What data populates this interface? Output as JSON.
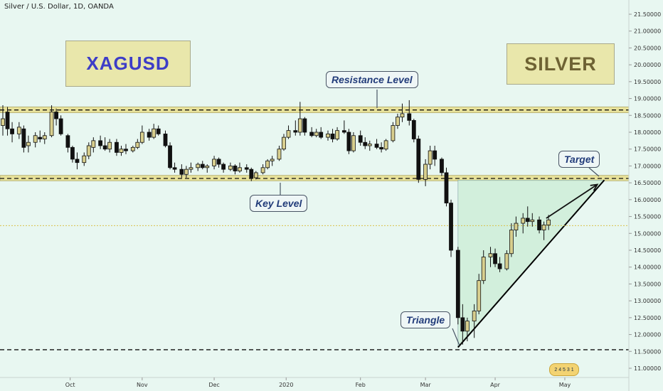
{
  "header": {
    "symbol_title": "Silver / U.S. Dollar, 1D, OANDA"
  },
  "labels": {
    "xagusd": "XAGUSD",
    "silver": "SILVER",
    "resistance": "Resistance Level",
    "key": "Key Level",
    "triangle": "Triangle",
    "target": "Target"
  },
  "logo_text": "2 4 5 3 1",
  "colors": {
    "background": "#e8f7f1",
    "zone_fill": "#e8e29a",
    "up_candle": "#d8cf8e",
    "down_candle": "#111111",
    "triangle_fill": "#cfeed9"
  },
  "chart_data": {
    "type": "candlestick",
    "title": "Silver / U.S. Dollar, 1D, OANDA",
    "y_axis": {
      "ticks": [
        "21.50000",
        "21.00000",
        "20.50000",
        "20.00000",
        "19.50000",
        "19.00000",
        "18.50000",
        "18.00000",
        "17.50000",
        "17.00000",
        "16.50000",
        "16.00000",
        "15.50000",
        "15.00000",
        "14.50000",
        "14.00000",
        "13.50000",
        "13.00000",
        "12.50000",
        "12.00000",
        "11.50000",
        "11.00000"
      ],
      "range": [
        10.85,
        21.75
      ]
    },
    "x_axis": {
      "ticks": [
        "Oct",
        "Nov",
        "Dec",
        "2020",
        "Feb",
        "Mar",
        "Apr",
        "May"
      ],
      "range": [
        "2019-09-02",
        "2020-05-20"
      ],
      "tick_dates": [
        "2019-10-01",
        "2019-11-01",
        "2019-12-02",
        "2020-01-02",
        "2020-02-03",
        "2020-03-02",
        "2020-04-01",
        "2020-05-01"
      ]
    },
    "zones": [
      {
        "name": "Resistance Level",
        "low": 18.58,
        "high": 18.75,
        "line": 18.66
      },
      {
        "name": "Key Level",
        "low": 16.56,
        "high": 16.72,
        "line": 16.63
      }
    ],
    "lines": [
      {
        "name": "support",
        "y": 11.55
      },
      {
        "name": "current",
        "y": 15.23
      }
    ],
    "triangle": {
      "points": [
        [
          "2020-03-16",
          11.62
        ],
        [
          "2020-03-16",
          16.58
        ],
        [
          "2020-05-18",
          16.58
        ]
      ]
    },
    "target_arrow": {
      "from": [
        "2020-04-23",
        15.45
      ],
      "to": [
        "2020-05-15",
        16.45
      ]
    },
    "ohlc": [
      {
        "d": "2019-09-02",
        "o": 18.2,
        "h": 18.8,
        "l": 17.9,
        "c": 18.4
      },
      {
        "d": "2019-09-04",
        "o": 18.6,
        "h": 18.75,
        "l": 17.9,
        "c": 18.1
      },
      {
        "d": "2019-09-06",
        "o": 18.1,
        "h": 18.3,
        "l": 17.7,
        "c": 17.95
      },
      {
        "d": "2019-09-09",
        "o": 17.95,
        "h": 18.3,
        "l": 17.8,
        "c": 18.15
      },
      {
        "d": "2019-09-11",
        "o": 18.1,
        "h": 18.2,
        "l": 17.4,
        "c": 17.55
      },
      {
        "d": "2019-09-13",
        "o": 17.6,
        "h": 17.9,
        "l": 17.4,
        "c": 17.7
      },
      {
        "d": "2019-09-16",
        "o": 17.7,
        "h": 18.0,
        "l": 17.55,
        "c": 17.9
      },
      {
        "d": "2019-09-18",
        "o": 17.85,
        "h": 18.05,
        "l": 17.7,
        "c": 17.8
      },
      {
        "d": "2019-09-20",
        "o": 17.8,
        "h": 18.0,
        "l": 17.65,
        "c": 17.9
      },
      {
        "d": "2019-09-23",
        "o": 17.9,
        "h": 18.8,
        "l": 17.85,
        "c": 18.6
      },
      {
        "d": "2019-09-25",
        "o": 18.6,
        "h": 18.7,
        "l": 18.2,
        "c": 18.4
      },
      {
        "d": "2019-09-27",
        "o": 18.4,
        "h": 18.5,
        "l": 17.9,
        "c": 17.95
      },
      {
        "d": "2019-09-30",
        "o": 17.9,
        "h": 17.95,
        "l": 17.4,
        "c": 17.55
      },
      {
        "d": "2019-10-02",
        "o": 17.55,
        "h": 17.6,
        "l": 17.1,
        "c": 17.2
      },
      {
        "d": "2019-10-04",
        "o": 17.2,
        "h": 17.4,
        "l": 16.9,
        "c": 17.1
      },
      {
        "d": "2019-10-07",
        "o": 17.1,
        "h": 17.4,
        "l": 17.0,
        "c": 17.3
      },
      {
        "d": "2019-10-09",
        "o": 17.3,
        "h": 17.7,
        "l": 17.2,
        "c": 17.6
      },
      {
        "d": "2019-10-11",
        "o": 17.55,
        "h": 17.85,
        "l": 17.4,
        "c": 17.75
      },
      {
        "d": "2019-10-14",
        "o": 17.75,
        "h": 17.9,
        "l": 17.5,
        "c": 17.6
      },
      {
        "d": "2019-10-16",
        "o": 17.6,
        "h": 17.85,
        "l": 17.45,
        "c": 17.5
      },
      {
        "d": "2019-10-18",
        "o": 17.5,
        "h": 17.8,
        "l": 17.4,
        "c": 17.7
      },
      {
        "d": "2019-10-21",
        "o": 17.7,
        "h": 17.8,
        "l": 17.3,
        "c": 17.4
      },
      {
        "d": "2019-10-23",
        "o": 17.4,
        "h": 17.6,
        "l": 17.3,
        "c": 17.5
      },
      {
        "d": "2019-10-25",
        "o": 17.5,
        "h": 17.65,
        "l": 17.35,
        "c": 17.45
      },
      {
        "d": "2019-10-28",
        "o": 17.45,
        "h": 17.6,
        "l": 17.4,
        "c": 17.55
      },
      {
        "d": "2019-10-30",
        "o": 17.55,
        "h": 17.8,
        "l": 17.5,
        "c": 17.7
      },
      {
        "d": "2019-11-01",
        "o": 17.7,
        "h": 18.2,
        "l": 17.65,
        "c": 18.0
      },
      {
        "d": "2019-11-04",
        "o": 18.0,
        "h": 18.1,
        "l": 17.75,
        "c": 17.85
      },
      {
        "d": "2019-11-06",
        "o": 17.85,
        "h": 18.25,
        "l": 17.8,
        "c": 18.1
      },
      {
        "d": "2019-11-08",
        "o": 18.1,
        "h": 18.2,
        "l": 17.9,
        "c": 17.95
      },
      {
        "d": "2019-11-11",
        "o": 17.95,
        "h": 18.05,
        "l": 17.55,
        "c": 17.6
      },
      {
        "d": "2019-11-13",
        "o": 17.6,
        "h": 17.7,
        "l": 16.9,
        "c": 16.95
      },
      {
        "d": "2019-11-15",
        "o": 16.95,
        "h": 17.1,
        "l": 16.8,
        "c": 16.9
      },
      {
        "d": "2019-11-18",
        "o": 16.9,
        "h": 17.05,
        "l": 16.65,
        "c": 16.75
      },
      {
        "d": "2019-11-20",
        "o": 16.75,
        "h": 17.0,
        "l": 16.65,
        "c": 16.9
      },
      {
        "d": "2019-11-22",
        "o": 16.9,
        "h": 17.1,
        "l": 16.8,
        "c": 16.95
      },
      {
        "d": "2019-11-25",
        "o": 16.95,
        "h": 17.1,
        "l": 16.85,
        "c": 17.05
      },
      {
        "d": "2019-11-27",
        "o": 17.05,
        "h": 17.15,
        "l": 16.9,
        "c": 16.95
      },
      {
        "d": "2019-11-29",
        "o": 16.95,
        "h": 17.05,
        "l": 16.8,
        "c": 17.0
      },
      {
        "d": "2019-12-02",
        "o": 17.0,
        "h": 17.3,
        "l": 16.9,
        "c": 17.2
      },
      {
        "d": "2019-12-04",
        "o": 17.2,
        "h": 17.25,
        "l": 16.95,
        "c": 17.05
      },
      {
        "d": "2019-12-06",
        "o": 17.05,
        "h": 17.1,
        "l": 16.8,
        "c": 16.9
      },
      {
        "d": "2019-12-09",
        "o": 16.9,
        "h": 17.1,
        "l": 16.85,
        "c": 17.0
      },
      {
        "d": "2019-12-11",
        "o": 17.0,
        "h": 17.05,
        "l": 16.75,
        "c": 16.85
      },
      {
        "d": "2019-12-13",
        "o": 16.85,
        "h": 17.1,
        "l": 16.8,
        "c": 16.95
      },
      {
        "d": "2019-12-16",
        "o": 16.95,
        "h": 17.05,
        "l": 16.8,
        "c": 16.9
      },
      {
        "d": "2019-12-18",
        "o": 16.9,
        "h": 16.95,
        "l": 16.55,
        "c": 16.65
      },
      {
        "d": "2019-12-20",
        "o": 16.65,
        "h": 16.85,
        "l": 16.6,
        "c": 16.8
      },
      {
        "d": "2019-12-23",
        "o": 16.8,
        "h": 17.05,
        "l": 16.75,
        "c": 16.95
      },
      {
        "d": "2019-12-25",
        "o": 16.95,
        "h": 17.2,
        "l": 16.9,
        "c": 17.15
      },
      {
        "d": "2019-12-27",
        "o": 17.15,
        "h": 17.3,
        "l": 17.0,
        "c": 17.2
      },
      {
        "d": "2019-12-30",
        "o": 17.2,
        "h": 17.6,
        "l": 17.15,
        "c": 17.5
      },
      {
        "d": "2020-01-01",
        "o": 17.5,
        "h": 17.95,
        "l": 17.45,
        "c": 17.85
      },
      {
        "d": "2020-01-03",
        "o": 17.85,
        "h": 18.2,
        "l": 17.8,
        "c": 18.05
      },
      {
        "d": "2020-01-06",
        "o": 18.05,
        "h": 18.35,
        "l": 17.9,
        "c": 18.0
      },
      {
        "d": "2020-01-08",
        "o": 18.0,
        "h": 18.9,
        "l": 17.9,
        "c": 18.4
      },
      {
        "d": "2020-01-10",
        "o": 18.4,
        "h": 18.45,
        "l": 17.9,
        "c": 18.0
      },
      {
        "d": "2020-01-13",
        "o": 18.0,
        "h": 18.15,
        "l": 17.85,
        "c": 17.9
      },
      {
        "d": "2020-01-15",
        "o": 17.9,
        "h": 18.1,
        "l": 17.85,
        "c": 18.0
      },
      {
        "d": "2020-01-17",
        "o": 18.0,
        "h": 18.15,
        "l": 17.8,
        "c": 17.85
      },
      {
        "d": "2020-01-20",
        "o": 17.85,
        "h": 18.05,
        "l": 17.75,
        "c": 17.95
      },
      {
        "d": "2020-01-22",
        "o": 17.95,
        "h": 18.1,
        "l": 17.7,
        "c": 17.8
      },
      {
        "d": "2020-01-24",
        "o": 17.8,
        "h": 18.15,
        "l": 17.75,
        "c": 18.05
      },
      {
        "d": "2020-01-27",
        "o": 18.05,
        "h": 18.35,
        "l": 17.95,
        "c": 18.0
      },
      {
        "d": "2020-01-29",
        "o": 18.0,
        "h": 18.1,
        "l": 17.35,
        "c": 17.45
      },
      {
        "d": "2020-01-31",
        "o": 17.45,
        "h": 18.0,
        "l": 17.4,
        "c": 17.9
      },
      {
        "d": "2020-02-03",
        "o": 17.9,
        "h": 18.05,
        "l": 17.6,
        "c": 17.7
      },
      {
        "d": "2020-02-05",
        "o": 17.7,
        "h": 17.85,
        "l": 17.5,
        "c": 17.6
      },
      {
        "d": "2020-02-07",
        "o": 17.6,
        "h": 17.75,
        "l": 17.45,
        "c": 17.65
      },
      {
        "d": "2020-02-10",
        "o": 17.65,
        "h": 17.8,
        "l": 17.5,
        "c": 17.55
      },
      {
        "d": "2020-02-12",
        "o": 17.55,
        "h": 17.7,
        "l": 17.4,
        "c": 17.5
      },
      {
        "d": "2020-02-14",
        "o": 17.5,
        "h": 17.8,
        "l": 17.45,
        "c": 17.75
      },
      {
        "d": "2020-02-17",
        "o": 17.75,
        "h": 18.3,
        "l": 17.7,
        "c": 18.2
      },
      {
        "d": "2020-02-19",
        "o": 18.2,
        "h": 18.55,
        "l": 18.1,
        "c": 18.45
      },
      {
        "d": "2020-02-21",
        "o": 18.45,
        "h": 18.85,
        "l": 18.3,
        "c": 18.55
      },
      {
        "d": "2020-02-24",
        "o": 18.55,
        "h": 18.95,
        "l": 18.2,
        "c": 18.35
      },
      {
        "d": "2020-02-26",
        "o": 18.35,
        "h": 18.4,
        "l": 17.7,
        "c": 17.8
      },
      {
        "d": "2020-02-28",
        "o": 17.8,
        "h": 17.9,
        "l": 16.5,
        "c": 16.6
      },
      {
        "d": "2020-03-02",
        "o": 16.6,
        "h": 17.2,
        "l": 16.4,
        "c": 17.05
      },
      {
        "d": "2020-03-04",
        "o": 17.05,
        "h": 17.6,
        "l": 16.9,
        "c": 17.45
      },
      {
        "d": "2020-03-06",
        "o": 17.45,
        "h": 17.6,
        "l": 17.0,
        "c": 17.2
      },
      {
        "d": "2020-03-09",
        "o": 17.2,
        "h": 17.25,
        "l": 16.7,
        "c": 16.8
      },
      {
        "d": "2020-03-11",
        "o": 16.8,
        "h": 16.95,
        "l": 15.8,
        "c": 15.9
      },
      {
        "d": "2020-03-13",
        "o": 15.9,
        "h": 16.0,
        "l": 14.3,
        "c": 14.5
      },
      {
        "d": "2020-03-16",
        "o": 14.5,
        "h": 14.6,
        "l": 12.3,
        "c": 12.5
      },
      {
        "d": "2020-03-18",
        "o": 12.5,
        "h": 12.9,
        "l": 11.7,
        "c": 12.1
      },
      {
        "d": "2020-03-20",
        "o": 12.1,
        "h": 12.5,
        "l": 11.8,
        "c": 12.4
      },
      {
        "d": "2020-03-23",
        "o": 12.4,
        "h": 12.9,
        "l": 11.9,
        "c": 12.7
      },
      {
        "d": "2020-03-25",
        "o": 12.7,
        "h": 13.8,
        "l": 12.6,
        "c": 13.6
      },
      {
        "d": "2020-03-27",
        "o": 13.6,
        "h": 14.5,
        "l": 13.5,
        "c": 14.3
      },
      {
        "d": "2020-03-30",
        "o": 14.3,
        "h": 14.6,
        "l": 14.0,
        "c": 14.4
      },
      {
        "d": "2020-04-01",
        "o": 14.4,
        "h": 14.55,
        "l": 14.0,
        "c": 14.1
      },
      {
        "d": "2020-04-03",
        "o": 14.1,
        "h": 14.3,
        "l": 13.85,
        "c": 13.95
      },
      {
        "d": "2020-04-06",
        "o": 13.95,
        "h": 14.5,
        "l": 13.9,
        "c": 14.4
      },
      {
        "d": "2020-04-08",
        "o": 14.4,
        "h": 15.3,
        "l": 14.3,
        "c": 15.1
      },
      {
        "d": "2020-04-10",
        "o": 15.1,
        "h": 15.5,
        "l": 14.9,
        "c": 15.3
      },
      {
        "d": "2020-04-13",
        "o": 15.3,
        "h": 15.6,
        "l": 15.0,
        "c": 15.45
      },
      {
        "d": "2020-04-15",
        "o": 15.45,
        "h": 15.8,
        "l": 15.2,
        "c": 15.35
      },
      {
        "d": "2020-04-17",
        "o": 15.35,
        "h": 15.6,
        "l": 15.2,
        "c": 15.4
      },
      {
        "d": "2020-04-20",
        "o": 15.4,
        "h": 15.5,
        "l": 15.0,
        "c": 15.1
      },
      {
        "d": "2020-04-22",
        "o": 15.1,
        "h": 15.35,
        "l": 14.8,
        "c": 15.25
      },
      {
        "d": "2020-04-24",
        "o": 15.25,
        "h": 15.55,
        "l": 15.1,
        "c": 15.4
      }
    ]
  }
}
